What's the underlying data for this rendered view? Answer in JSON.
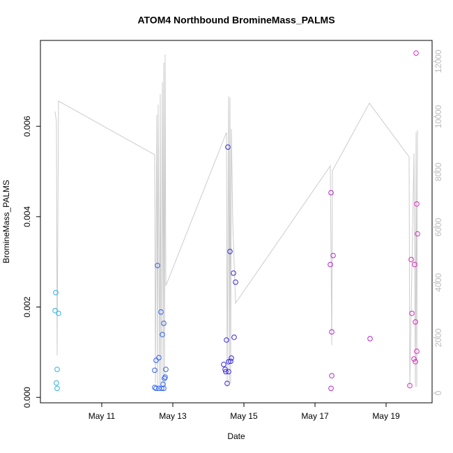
{
  "chart_data": {
    "type": "scatter",
    "title": "ATOM4 Northbound BromineMass_PALMS",
    "xlabel": "Date",
    "ylabel": "BromineMass_PALMS",
    "xlim": [
      9.275,
      20.294
    ],
    "ylim": [
      -0.00012,
      0.0079
    ],
    "y2lim": [
      -353,
      12757
    ],
    "xticks": [
      {
        "value": 11,
        "label": "May 11"
      },
      {
        "value": 13,
        "label": "May 13"
      },
      {
        "value": 15,
        "label": "May 15"
      },
      {
        "value": 17,
        "label": "May 17"
      },
      {
        "value": 19,
        "label": "May 19"
      }
    ],
    "yticks": [
      {
        "value": 0,
        "label": "0.000"
      },
      0.002,
      0.004,
      0.006
    ],
    "y2ticks": [
      0,
      2000,
      4000,
      6000,
      8000,
      10000,
      12000
    ],
    "series": [
      {
        "type": "line",
        "axis": "y2",
        "color": "#cccccc",
        "x": [
          9.686,
          9.725,
          9.745,
          9.784,
          12.49,
          12.51,
          12.549,
          12.569,
          12.588,
          12.627,
          12.647,
          12.667,
          12.706,
          12.725,
          12.745,
          12.765,
          12.784,
          12.804,
          14.51,
          14.529,
          14.569,
          14.588,
          14.608,
          14.627,
          14.647,
          14.686,
          14.765,
          17.431,
          17.471,
          17.49,
          18.529,
          19.647,
          19.667,
          19.784,
          19.824,
          19.843,
          19.863,
          19.882
        ],
        "values": [
          10185,
          9807,
          1361,
          10563,
          8622,
          353,
          10059,
          227,
          10437,
          227,
          10815,
          227,
          11244,
          227,
          11950,
          227,
          12252,
          3882,
          9429,
          227,
          10739,
          353,
          10689,
          353,
          9555,
          6151,
          3252,
          8218,
          1739,
          8042,
          10487,
          8546,
          227,
          8672,
          227,
          9429,
          227,
          9504
        ]
      },
      {
        "type": "scatter",
        "color": "#2ab0e4",
        "x": [
          9.706,
          9.686,
          9.784,
          9.745,
          9.725,
          9.745
        ],
        "values": [
          0.00232,
          0.00192,
          0.00186,
          0.00062,
          0.00032,
          0.0002
        ]
      },
      {
        "type": "scatter",
        "color": "#2f62ec",
        "x": [
          12.569,
          12.667,
          12.706,
          12.745,
          12.49,
          12.529,
          12.608,
          12.804,
          12.784,
          12.765,
          12.725,
          12.49,
          12.529,
          12.608,
          12.686,
          12.745
        ],
        "values": [
          0.00292,
          0.00189,
          0.00139,
          0.00164,
          0.0006,
          0.00082,
          0.00088,
          0.00062,
          0.00045,
          0.00042,
          0.00029,
          0.00022,
          0.0002,
          0.0002,
          0.0002,
          0.0002
        ]
      },
      {
        "type": "scatter",
        "color": "#3424dc",
        "x": [
          14.549,
          14.608,
          14.706,
          14.765,
          14.51,
          14.725,
          14.647,
          14.627,
          14.569,
          14.431,
          14.471,
          14.49,
          14.569,
          14.529
        ],
        "values": [
          0.00554,
          0.00323,
          0.00275,
          0.00255,
          0.00127,
          0.00133,
          0.00087,
          0.0008,
          0.00079,
          0.00073,
          0.00062,
          0.00057,
          0.00057,
          0.00031
        ]
      },
      {
        "type": "scatter",
        "color": "#b424d0",
        "x": [
          17.451,
          17.51,
          17.431,
          17.471,
          17.471,
          17.451,
          18.549
        ],
        "values": [
          0.00453,
          0.00314,
          0.00294,
          0.00145,
          0.00048,
          0.0002,
          0.0013
        ]
      },
      {
        "type": "scatter",
        "color": "#e024c4",
        "x": [
          19.843,
          19.863,
          19.882,
          19.706,
          19.804,
          19.725,
          19.824,
          19.863,
          19.784,
          19.824,
          19.667
        ],
        "values": [
          0.00762,
          0.00428,
          0.00362,
          0.00305,
          0.00294,
          0.00186,
          0.00167,
          0.00102,
          0.00085,
          0.00079,
          0.00026
        ]
      }
    ]
  }
}
